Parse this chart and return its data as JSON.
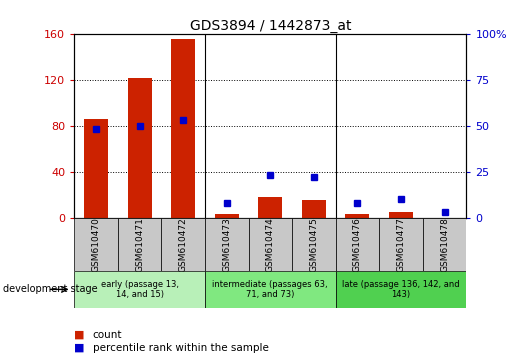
{
  "title": "GDS3894 / 1442873_at",
  "samples": [
    "GSM610470",
    "GSM610471",
    "GSM610472",
    "GSM610473",
    "GSM610474",
    "GSM610475",
    "GSM610476",
    "GSM610477",
    "GSM610478"
  ],
  "counts": [
    86,
    121,
    155,
    3,
    18,
    15,
    3,
    5,
    0
  ],
  "percentiles": [
    48,
    50,
    53,
    8,
    23,
    22,
    8,
    10,
    3
  ],
  "ylim_left": [
    0,
    160
  ],
  "ylim_right": [
    0,
    100
  ],
  "yticks_left": [
    0,
    40,
    80,
    120,
    160
  ],
  "yticks_right": [
    0,
    25,
    50,
    75,
    100
  ],
  "ytick_labels_left": [
    "0",
    "40",
    "80",
    "120",
    "160"
  ],
  "ytick_labels_right": [
    "0",
    "25",
    "50",
    "75",
    "100%"
  ],
  "groups": [
    {
      "label": "early (passage 13,\n14, and 15)",
      "indices": [
        0,
        1,
        2
      ],
      "color": "#b8f0b8"
    },
    {
      "label": "intermediate (passages 63,\n71, and 73)",
      "indices": [
        3,
        4,
        5
      ],
      "color": "#80e880"
    },
    {
      "label": "late (passage 136, 142, and\n143)",
      "indices": [
        6,
        7,
        8
      ],
      "color": "#50d050"
    }
  ],
  "bar_color": "#cc2200",
  "marker_color": "#0000cc",
  "tick_bg_color": "#c8c8c8",
  "left_axis_color": "#cc0000",
  "right_axis_color": "#0000cc",
  "dev_stage_label": "development stage",
  "legend_count": "count",
  "legend_pct": "percentile rank within the sample",
  "grid_yticks": [
    40,
    80,
    120
  ]
}
